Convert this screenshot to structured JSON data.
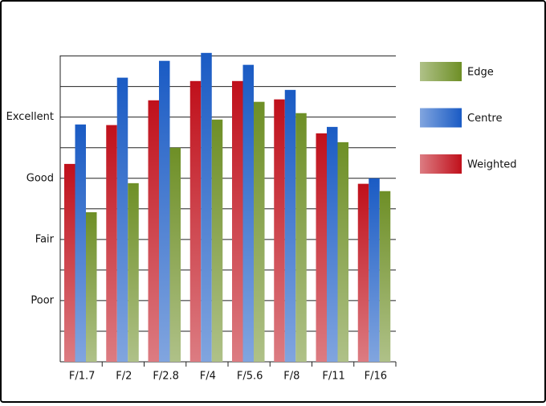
{
  "chart_data": {
    "type": "bar",
    "categories": [
      "F/1.7",
      "F/2",
      "F/2.8",
      "F/4",
      "F/5.6",
      "F/8",
      "F/11",
      "F/16"
    ],
    "series": [
      {
        "name": "Weighted",
        "color": "#c0101b",
        "values": [
          6.47,
          7.74,
          8.55,
          9.18,
          9.18,
          8.58,
          7.47,
          5.82
        ]
      },
      {
        "name": "Centre",
        "color": "#1a5bc4",
        "values": [
          7.76,
          9.29,
          9.84,
          10.1,
          9.71,
          8.89,
          7.68,
          6.0
        ]
      },
      {
        "name": "Edge",
        "color": "#6e8f26",
        "values": [
          4.89,
          5.84,
          7.0,
          7.92,
          8.5,
          8.13,
          7.18,
          5.58
        ]
      }
    ],
    "ylim": [
      0,
      10.2
    ],
    "yticks": [
      {
        "value": 2,
        "label": "Poor"
      },
      {
        "value": 4,
        "label": "Fair"
      },
      {
        "value": 6,
        "label": "Good"
      },
      {
        "value": 8,
        "label": "Excellent"
      }
    ],
    "grid_lines": [
      0,
      1,
      2,
      3,
      4,
      5,
      6,
      7,
      8,
      9,
      10
    ],
    "grid": true,
    "legend": "right"
  }
}
